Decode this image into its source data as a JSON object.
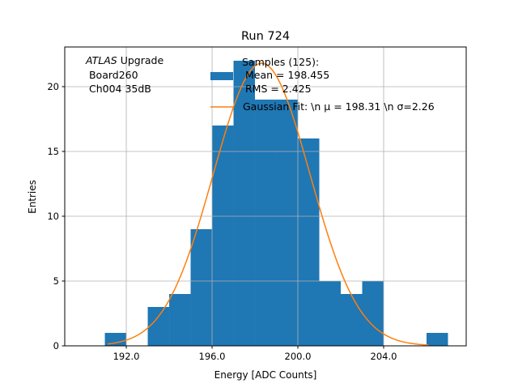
{
  "chart_data": {
    "type": "bar",
    "title": "Run 724",
    "xlabel": "Energy [ADC Counts]",
    "ylabel": "Entries",
    "xlim": [
      189.13,
      207.85
    ],
    "ylim": [
      0,
      23.06
    ],
    "grid": true,
    "xticks": [
      192,
      196,
      200,
      204
    ],
    "xtick_labels": [
      "192.0",
      "196.0",
      "200.0",
      "204.0"
    ],
    "yticks": [
      0,
      5,
      10,
      15,
      20
    ],
    "ytick_labels": [
      "0",
      "5",
      "10",
      "15",
      "20"
    ],
    "bin_width": 1,
    "bin_edges_start": [
      191,
      192,
      193,
      194,
      195,
      196,
      197,
      198,
      199,
      200,
      201,
      202,
      203,
      204,
      205,
      206
    ],
    "values": [
      1,
      0,
      3,
      4,
      9,
      17,
      22,
      19,
      19,
      16,
      5,
      4,
      5,
      0,
      0,
      1
    ],
    "bar_color": "#1f77b4",
    "fit": {
      "type": "gaussian",
      "mu": 198.31,
      "sigma": 2.26,
      "amplitude": 21.8,
      "x_range": [
        191.13,
        206.1
      ],
      "color": "#ff7f0e"
    },
    "annotation": {
      "italic": "ATLAS",
      "line1_rest": " Upgrade",
      "line2": " Board260",
      "line3": " Ch004 35dB"
    },
    "legend": {
      "placement": "top-center",
      "entries": [
        {
          "lines": [
            "Samples (125):",
            " Mean = 198.455",
            " RMS = 2.425"
          ]
        },
        {
          "lines": [
            "Gaussian Fit: \\n μ = 198.31 \\n σ=2.26"
          ]
        }
      ]
    }
  }
}
